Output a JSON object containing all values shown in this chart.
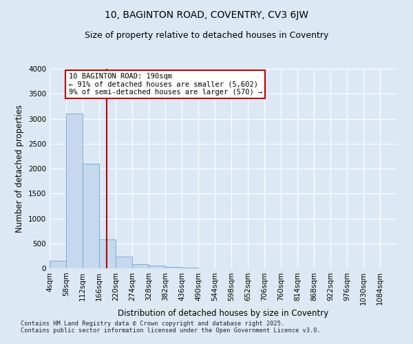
{
  "title1": "10, BAGINTON ROAD, COVENTRY, CV3 6JW",
  "title2": "Size of property relative to detached houses in Coventry",
  "xlabel": "Distribution of detached houses by size in Coventry",
  "ylabel": "Number of detached properties",
  "bin_labels": [
    "4sqm",
    "58sqm",
    "112sqm",
    "166sqm",
    "220sqm",
    "274sqm",
    "328sqm",
    "382sqm",
    "436sqm",
    "490sqm",
    "544sqm",
    "598sqm",
    "652sqm",
    "706sqm",
    "760sqm",
    "814sqm",
    "868sqm",
    "922sqm",
    "976sqm",
    "1030sqm",
    "1084sqm"
  ],
  "bin_edges": [
    4,
    58,
    112,
    166,
    220,
    274,
    328,
    382,
    436,
    490,
    544,
    598,
    652,
    706,
    760,
    814,
    868,
    922,
    976,
    1030,
    1084
  ],
  "bar_values": [
    150,
    3100,
    2100,
    580,
    240,
    80,
    55,
    30,
    20,
    0,
    0,
    0,
    0,
    0,
    0,
    0,
    0,
    0,
    0,
    0
  ],
  "bar_color": "#c5d8ee",
  "bar_edge_color": "#7aadd4",
  "vline_x": 190,
  "vline_color": "#bb0000",
  "ylim": [
    0,
    4000
  ],
  "yticks": [
    0,
    500,
    1000,
    1500,
    2000,
    2500,
    3000,
    3500,
    4000
  ],
  "annotation_text": "10 BAGINTON ROAD: 190sqm\n← 91% of detached houses are smaller (5,602)\n9% of semi-detached houses are larger (570) →",
  "annotation_box_color": "#ffffff",
  "annotation_box_edge": "#bb0000",
  "footnote1": "Contains HM Land Registry data © Crown copyright and database right 2025.",
  "footnote2": "Contains public sector information licensed under the Open Government Licence v3.0.",
  "plot_bg_color": "#dce9f5",
  "fig_bg_color": "#dce9f5",
  "grid_color": "#ffffff",
  "title_fontsize": 10,
  "label_fontsize": 8.5,
  "tick_fontsize": 7.5,
  "annot_fontsize": 7.5
}
